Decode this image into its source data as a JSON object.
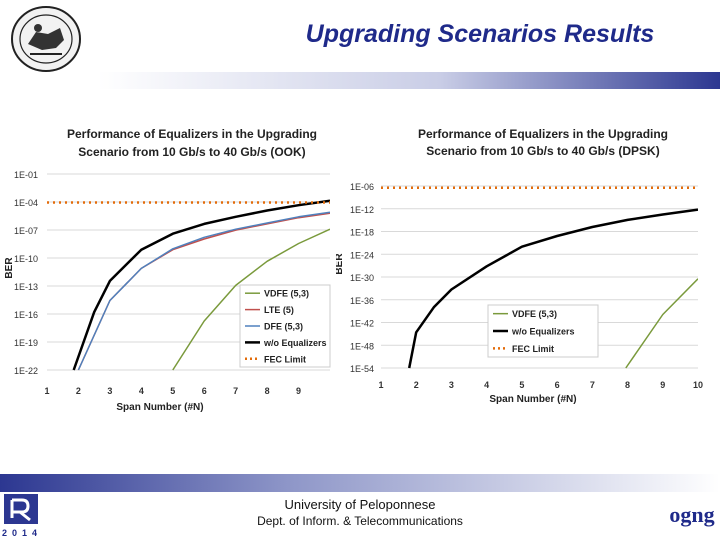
{
  "slide": {
    "title": "Upgrading Scenarios Results",
    "footer_line1": "University of Peloponnese",
    "footer_line2": "Dept. of Inform. & Telecommunications",
    "left_logo_year": "2014",
    "right_logo_text": "ogng",
    "colors": {
      "title": "#1f2a8a",
      "bar": "#2c3791"
    }
  },
  "chart_data": [
    {
      "type": "line",
      "title_line1": "Performance of Equalizers in the Upgrading",
      "title_line2": "Scenario from 10 Gb/s to 40 Gb/s (OOK)",
      "xlabel": "Span Number (#N)",
      "ylabel": "BER",
      "x_ticks": [
        1,
        2,
        3,
        4,
        5,
        6,
        7,
        8,
        9
      ],
      "y_tick_labels": [
        "1E-01",
        "1E-04",
        "1E-07",
        "1E-10",
        "1E-13",
        "1E-16",
        "1E-19",
        "1E-22"
      ],
      "ylim_exp": [
        -22,
        0
      ],
      "xlim": [
        1,
        10
      ],
      "series": [
        {
          "name": "VDFE (5,3)",
          "color": "#7a9a3c",
          "width": 1.5,
          "dashed": false,
          "points": [
            [
              5,
              -22
            ],
            [
              6,
              -16.5
            ],
            [
              7,
              -12.5
            ],
            [
              8,
              -9.8
            ],
            [
              9,
              -7.8
            ],
            [
              10,
              -6.2
            ]
          ]
        },
        {
          "name": "LTE (5)",
          "color": "#c0504d",
          "width": 1.5,
          "dashed": false,
          "points": [
            [
              2,
              -22
            ],
            [
              3,
              -14.2
            ],
            [
              4,
              -10.6
            ],
            [
              5,
              -8.5
            ],
            [
              6,
              -7.3
            ],
            [
              7,
              -6.3
            ],
            [
              8,
              -5.6
            ],
            [
              9,
              -4.9
            ],
            [
              10,
              -4.4
            ]
          ]
        },
        {
          "name": "DFE (5,3)",
          "color": "#4f81bd",
          "width": 1.5,
          "dashed": false,
          "points": [
            [
              2,
              -22
            ],
            [
              3,
              -14.2
            ],
            [
              4,
              -10.6
            ],
            [
              5,
              -8.4
            ],
            [
              6,
              -7.1
            ],
            [
              7,
              -6.2
            ],
            [
              8,
              -5.5
            ],
            [
              9,
              -4.8
            ],
            [
              10,
              -4.3
            ]
          ]
        },
        {
          "name": "w/o Equalizers",
          "color": "#000000",
          "width": 2.5,
          "dashed": false,
          "points": [
            [
              1.85,
              -22
            ],
            [
              2.5,
              -15.5
            ],
            [
              3,
              -12
            ],
            [
              4,
              -8.5
            ],
            [
              5,
              -6.7
            ],
            [
              6,
              -5.6
            ],
            [
              7,
              -4.8
            ],
            [
              8,
              -4.1
            ],
            [
              9,
              -3.5
            ],
            [
              10,
              -3.0
            ]
          ]
        },
        {
          "name": "FEC Limit",
          "color": "#e36c0a",
          "width": 2.5,
          "dashed": true,
          "points": [
            [
              1,
              -3.2
            ],
            [
              10,
              -3.2
            ]
          ]
        }
      ]
    },
    {
      "type": "line",
      "title_line1": "Performance of Equalizers in the Upgrading",
      "title_line2": "Scenario from 10 Gb/s to 40 Gb/s (DPSK)",
      "xlabel": "Span Number (#N)",
      "ylabel": "BER",
      "x_ticks": [
        1,
        2,
        3,
        4,
        5,
        6,
        7,
        8,
        9,
        10
      ],
      "y_tick_labels": [
        "1E-06",
        "1E-12",
        "1E-18",
        "1E-24",
        "1E-30",
        "1E-36",
        "1E-42",
        "1E-48",
        "1E-54"
      ],
      "ylim_exp": [
        -54,
        -3
      ],
      "xlim": [
        1,
        10
      ],
      "series": [
        {
          "name": "VDFE (5,3)",
          "color": "#7a9a3c",
          "width": 1.5,
          "dashed": false,
          "points": [
            [
              7.95,
              -54
            ],
            [
              9,
              -39
            ],
            [
              10,
              -29
            ]
          ]
        },
        {
          "name": "w/o Equalizers",
          "color": "#000000",
          "width": 2.5,
          "dashed": false,
          "points": [
            [
              1.8,
              -54
            ],
            [
              2,
              -44
            ],
            [
              2.5,
              -37
            ],
            [
              3,
              -32
            ],
            [
              4,
              -25.5
            ],
            [
              5,
              -20
            ],
            [
              6,
              -17
            ],
            [
              7,
              -14.5
            ],
            [
              8,
              -12.5
            ],
            [
              9,
              -11
            ],
            [
              10,
              -9.6
            ]
          ]
        },
        {
          "name": "FEC Limit",
          "color": "#e36c0a",
          "width": 2.5,
          "dashed": true,
          "points": [
            [
              1,
              -3.5
            ],
            [
              10,
              -3.5
            ]
          ]
        }
      ]
    }
  ]
}
